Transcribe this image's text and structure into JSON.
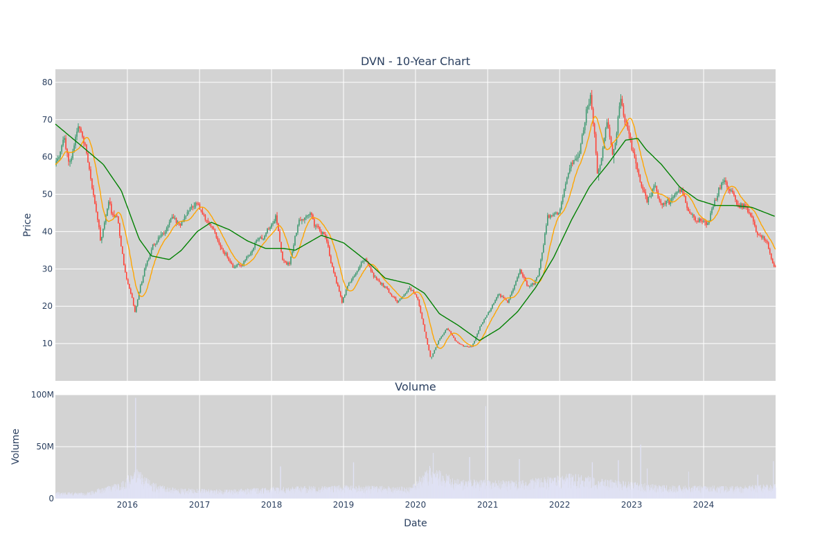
{
  "chart_data": [
    {
      "type": "candlestick",
      "title": "DVN - 10-Year Chart",
      "xlabel": "",
      "ylabel": "Price",
      "x_range": [
        "2015-01-01",
        "2024-12-31"
      ],
      "ylim": [
        0,
        83.5
      ],
      "y_ticks": [
        10,
        20,
        30,
        40,
        50,
        60,
        70,
        80
      ],
      "grid": true,
      "legend": "none",
      "colors": {
        "background": "#d3d3d3",
        "grid": "#ffffff",
        "up": "#3d9970",
        "down": "#ff4136",
        "ma_short": "#ffa500",
        "ma_long": "#008000"
      },
      "price_path": [
        [
          "2015-01-01",
          58
        ],
        [
          "2015-02-15",
          65
        ],
        [
          "2015-03-15",
          58
        ],
        [
          "2015-05-01",
          69
        ],
        [
          "2015-06-15",
          60
        ],
        [
          "2015-07-20",
          48
        ],
        [
          "2015-08-20",
          38
        ],
        [
          "2015-10-01",
          47
        ],
        [
          "2015-11-15",
          42
        ],
        [
          "2015-12-20",
          30
        ],
        [
          "2016-02-10",
          18.5
        ],
        [
          "2016-03-10",
          26
        ],
        [
          "2016-05-01",
          35
        ],
        [
          "2016-06-15",
          38
        ],
        [
          "2016-08-15",
          44
        ],
        [
          "2016-10-01",
          41
        ],
        [
          "2016-11-20",
          47
        ],
        [
          "2017-01-01",
          46
        ],
        [
          "2017-03-01",
          41
        ],
        [
          "2017-05-01",
          35
        ],
        [
          "2017-06-20",
          30
        ],
        [
          "2017-08-10",
          31
        ],
        [
          "2017-10-01",
          36
        ],
        [
          "2017-11-20",
          38
        ],
        [
          "2018-01-25",
          44
        ],
        [
          "2018-03-01",
          32
        ],
        [
          "2018-04-01",
          31
        ],
        [
          "2018-05-20",
          42
        ],
        [
          "2018-07-15",
          45
        ],
        [
          "2018-08-15",
          42
        ],
        [
          "2018-10-01",
          40
        ],
        [
          "2018-11-01",
          32
        ],
        [
          "2018-12-26",
          21
        ],
        [
          "2019-02-01",
          26
        ],
        [
          "2019-04-20",
          33
        ],
        [
          "2019-06-01",
          28
        ],
        [
          "2019-08-01",
          25
        ],
        [
          "2019-10-01",
          21
        ],
        [
          "2019-12-01",
          25
        ],
        [
          "2020-01-15",
          22
        ],
        [
          "2020-03-20",
          6
        ],
        [
          "2020-05-01",
          11
        ],
        [
          "2020-06-10",
          14
        ],
        [
          "2020-08-01",
          10
        ],
        [
          "2020-10-15",
          9
        ],
        [
          "2020-12-01",
          15
        ],
        [
          "2021-03-01",
          23
        ],
        [
          "2021-04-15",
          21
        ],
        [
          "2021-06-15",
          30
        ],
        [
          "2021-08-01",
          25
        ],
        [
          "2021-09-15",
          28
        ],
        [
          "2021-11-01",
          43
        ],
        [
          "2022-01-01",
          45
        ],
        [
          "2022-03-01",
          58
        ],
        [
          "2022-04-15",
          62
        ],
        [
          "2022-06-10",
          78
        ],
        [
          "2022-07-15",
          54
        ],
        [
          "2022-08-30",
          70
        ],
        [
          "2022-09-30",
          60
        ],
        [
          "2022-11-07",
          76
        ],
        [
          "2023-01-01",
          62
        ],
        [
          "2023-03-20",
          48
        ],
        [
          "2023-05-01",
          52
        ],
        [
          "2023-06-15",
          47
        ],
        [
          "2023-09-15",
          52
        ],
        [
          "2023-11-01",
          45
        ],
        [
          "2024-01-15",
          42
        ],
        [
          "2024-04-15",
          54
        ],
        [
          "2024-06-15",
          47
        ],
        [
          "2024-08-01",
          47
        ],
        [
          "2024-10-01",
          40
        ],
        [
          "2024-11-15",
          38
        ],
        [
          "2024-12-20",
          31
        ]
      ],
      "ma_long_path": [
        [
          "2015-01-01",
          68.8
        ],
        [
          "2015-05-01",
          63.5
        ],
        [
          "2015-09-01",
          58
        ],
        [
          "2015-12-01",
          51
        ],
        [
          "2016-03-01",
          38
        ],
        [
          "2016-05-01",
          33.5
        ],
        [
          "2016-08-01",
          32.5
        ],
        [
          "2016-10-01",
          35
        ],
        [
          "2016-12-20",
          40
        ],
        [
          "2017-03-01",
          42.5
        ],
        [
          "2017-06-01",
          40.5
        ],
        [
          "2017-09-01",
          37.5
        ],
        [
          "2017-12-01",
          35.5
        ],
        [
          "2018-03-01",
          35.5
        ],
        [
          "2018-05-01",
          35
        ],
        [
          "2018-09-10",
          39
        ],
        [
          "2019-01-01",
          37
        ],
        [
          "2019-05-01",
          32
        ],
        [
          "2019-08-01",
          27.5
        ],
        [
          "2019-12-01",
          26
        ],
        [
          "2020-02-15",
          23.5
        ],
        [
          "2020-05-01",
          18
        ],
        [
          "2020-08-01",
          15
        ],
        [
          "2020-11-20",
          10.8
        ],
        [
          "2021-03-01",
          14
        ],
        [
          "2021-06-01",
          18.5
        ],
        [
          "2021-09-01",
          25
        ],
        [
          "2021-12-01",
          33
        ],
        [
          "2022-03-01",
          43
        ],
        [
          "2022-06-01",
          52
        ],
        [
          "2022-09-01",
          58
        ],
        [
          "2022-12-01",
          64.5
        ],
        [
          "2023-02-01",
          65
        ],
        [
          "2023-03-15",
          62
        ],
        [
          "2023-06-01",
          58
        ],
        [
          "2023-09-01",
          52
        ],
        [
          "2023-12-01",
          48.5
        ],
        [
          "2024-03-01",
          47
        ],
        [
          "2024-06-01",
          47
        ],
        [
          "2024-09-01",
          46.5
        ],
        [
          "2024-12-31",
          44
        ]
      ]
    },
    {
      "type": "bar",
      "title": "Volume",
      "xlabel": "Date",
      "ylabel": "Volume",
      "ylim": [
        0,
        100000000
      ],
      "y_ticks": [
        0,
        50000000,
        100000000
      ],
      "y_tick_labels": [
        "0",
        "50M",
        "100M"
      ],
      "x_ticks": [
        "2016",
        "2017",
        "2018",
        "2019",
        "2020",
        "2021",
        "2022",
        "2023",
        "2024"
      ],
      "grid": true,
      "bar_color": "#e0e2f5",
      "volume_level_path": [
        [
          "2015-01-01",
          4500000
        ],
        [
          "2015-06-01",
          4000000
        ],
        [
          "2015-09-01",
          8000000
        ],
        [
          "2015-12-01",
          11000000
        ],
        [
          "2016-02-15",
          22000000
        ],
        [
          "2016-05-01",
          11000000
        ],
        [
          "2016-09-01",
          7000000
        ],
        [
          "2017-06-01",
          6000000
        ],
        [
          "2018-01-01",
          8000000
        ],
        [
          "2019-01-01",
          9000000
        ],
        [
          "2019-12-01",
          8000000
        ],
        [
          "2020-03-15",
          22000000
        ],
        [
          "2020-08-01",
          13000000
        ],
        [
          "2021-06-01",
          12000000
        ],
        [
          "2022-03-01",
          17000000
        ],
        [
          "2022-09-01",
          13000000
        ],
        [
          "2023-06-01",
          9000000
        ],
        [
          "2024-06-01",
          8500000
        ],
        [
          "2024-12-31",
          10000000
        ]
      ],
      "volume_spikes": [
        [
          "2016-02-11",
          97000000
        ],
        [
          "2018-02-15",
          31000000
        ],
        [
          "2019-02-20",
          35000000
        ],
        [
          "2020-03-30",
          44000000
        ],
        [
          "2020-10-01",
          40000000
        ],
        [
          "2020-12-21",
          89000000
        ],
        [
          "2021-06-10",
          38000000
        ],
        [
          "2022-06-15",
          35000000
        ],
        [
          "2022-10-25",
          37000000
        ],
        [
          "2023-02-15",
          52000000
        ],
        [
          "2023-03-20",
          29000000
        ],
        [
          "2023-10-15",
          26000000
        ],
        [
          "2024-10-01",
          23000000
        ],
        [
          "2024-12-20",
          36000000
        ]
      ]
    }
  ]
}
